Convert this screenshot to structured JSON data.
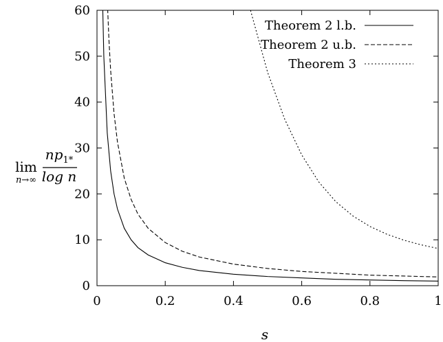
{
  "chart_data": {
    "type": "line",
    "title": "",
    "xlabel": "s",
    "ylabel": {
      "lim": "lim",
      "sub": "n→∞",
      "numerator": "np",
      "numerator_sub": "1*",
      "denominator": "log n"
    },
    "xlim": [
      0,
      1
    ],
    "ylim": [
      0,
      60
    ],
    "xticks": [
      0,
      0.2,
      0.4,
      0.6,
      0.8,
      1
    ],
    "xtick_labels": [
      "0",
      "0.2",
      "0.4",
      "0.6",
      "0.8",
      "1"
    ],
    "yticks": [
      0,
      10,
      20,
      30,
      40,
      50,
      60
    ],
    "ytick_labels": [
      "0",
      "10",
      "20",
      "30",
      "40",
      "50",
      "60"
    ],
    "grid": false,
    "legend_position": "top-right",
    "series": [
      {
        "name": "Theorem 2 l.b.",
        "style": "solid",
        "x": [
          0.015,
          0.02,
          0.03,
          0.04,
          0.05,
          0.06,
          0.08,
          0.1,
          0.12,
          0.15,
          0.2,
          0.25,
          0.3,
          0.4,
          0.5,
          0.6,
          0.7,
          0.8,
          0.9,
          1.0
        ],
        "y": [
          66.7,
          50,
          33.3,
          25,
          20,
          16.7,
          12.5,
          10,
          8.3,
          6.7,
          5,
          4,
          3.3,
          2.5,
          2,
          1.7,
          1.4,
          1.25,
          1.1,
          1
        ]
      },
      {
        "name": "Theorem 2 u.b.",
        "style": "dashed",
        "x": [
          0.028,
          0.03,
          0.035,
          0.04,
          0.05,
          0.06,
          0.08,
          0.1,
          0.12,
          0.15,
          0.2,
          0.25,
          0.3,
          0.4,
          0.5,
          0.6,
          0.7,
          0.8,
          0.9,
          1.0
        ],
        "y": [
          67,
          62.5,
          53.6,
          46.9,
          37.5,
          31.3,
          23.4,
          18.8,
          15.6,
          12.5,
          9.4,
          7.5,
          6.25,
          4.7,
          3.75,
          3.1,
          2.7,
          2.3,
          2.1,
          1.9
        ]
      },
      {
        "name": "Theorem 3",
        "style": "dotted",
        "x": [
          0.45,
          0.5,
          0.55,
          0.6,
          0.65,
          0.7,
          0.75,
          0.8,
          0.85,
          0.9,
          0.95,
          1.0
        ],
        "y": [
          60,
          46.5,
          36.3,
          28.5,
          22.6,
          18.3,
          15.2,
          12.9,
          11.2,
          9.9,
          8.9,
          8.1
        ]
      }
    ]
  }
}
